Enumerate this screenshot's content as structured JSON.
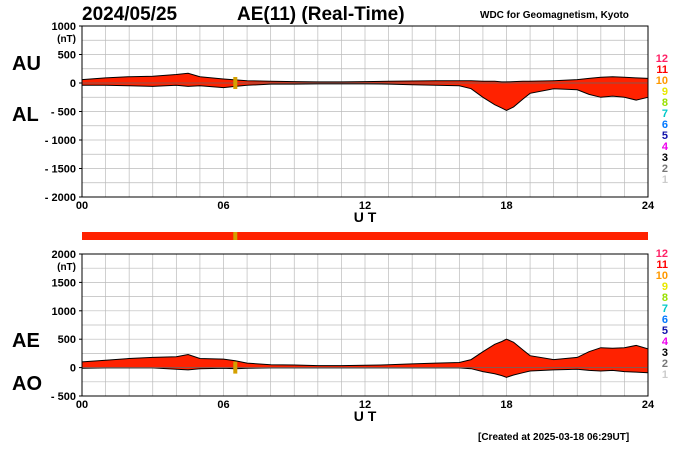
{
  "header": {
    "date": "2024/05/25",
    "title": "AE(11) (Real-Time)",
    "source": "WDC for Geomagnetism, Kyoto"
  },
  "footer": "[Created at 2025-03-18 06:29UT]",
  "colors": {
    "fill": "#ff2200",
    "outline": "#000000",
    "grid": "#bbbbbb",
    "marker": "#d4a000"
  },
  "legend_scale": {
    "labels": [
      "12",
      "11",
      "10",
      "9",
      "8",
      "7",
      "6",
      "5",
      "4",
      "3",
      "2",
      "1"
    ],
    "colors": [
      "#ff2266",
      "#ff0000",
      "#ff9900",
      "#e8e800",
      "#99e000",
      "#00c8c8",
      "#0077ff",
      "#1111aa",
      "#ee00ee",
      "#000000",
      "#777777",
      "#cccccc"
    ]
  },
  "chart_data": [
    {
      "type": "area",
      "panel": "AU/AL",
      "series_labels": [
        "AU",
        "AL"
      ],
      "unit_label": "(nT)",
      "xlabel": "U T",
      "x_ticks": [
        0,
        6,
        12,
        18,
        24
      ],
      "x_tick_labels": [
        "00",
        "06",
        "12",
        "18",
        "24"
      ],
      "xlim": [
        0,
        24
      ],
      "ylim": [
        -2000,
        1000
      ],
      "y_ticks": [
        1000,
        500,
        0,
        -500,
        -1000,
        -1500,
        -2000
      ],
      "y_tick_labels": [
        "1000",
        "500",
        "0",
        "- 500",
        "- 1000",
        "- 1500",
        "- 2000"
      ],
      "grid": true,
      "x": [
        0,
        1,
        2,
        3,
        4,
        4.5,
        5,
        6,
        6.5,
        7,
        8,
        9,
        10,
        11,
        12,
        13,
        14,
        15,
        16,
        16.5,
        17,
        17.5,
        17.8,
        18,
        18.3,
        18.7,
        19,
        20,
        21,
        21.5,
        22,
        22.5,
        23,
        23.5,
        24
      ],
      "upper": [
        60,
        90,
        110,
        120,
        150,
        170,
        110,
        70,
        55,
        40,
        30,
        25,
        20,
        20,
        25,
        30,
        35,
        40,
        40,
        40,
        30,
        30,
        20,
        20,
        25,
        30,
        30,
        40,
        60,
        80,
        100,
        110,
        100,
        90,
        80
      ],
      "lower": [
        -40,
        -40,
        -50,
        -60,
        -40,
        -60,
        -50,
        -80,
        -60,
        -40,
        -20,
        -20,
        -15,
        -15,
        -15,
        -20,
        -30,
        -40,
        -50,
        -100,
        -250,
        -380,
        -440,
        -480,
        -420,
        -280,
        -180,
        -100,
        -120,
        -200,
        -250,
        -230,
        -250,
        -300,
        -250
      ]
    },
    {
      "type": "area",
      "panel": "AE/AO",
      "series_labels": [
        "AE",
        "AO"
      ],
      "unit_label": "(nT)",
      "xlabel": "U T",
      "x_ticks": [
        0,
        6,
        12,
        18,
        24
      ],
      "x_tick_labels": [
        "00",
        "06",
        "12",
        "18",
        "24"
      ],
      "xlim": [
        0,
        24
      ],
      "ylim": [
        -500,
        2000
      ],
      "y_ticks": [
        2000,
        1500,
        1000,
        500,
        0,
        -500
      ],
      "y_tick_labels": [
        "2000",
        "1500",
        "1000",
        "500",
        "0",
        "- 500"
      ],
      "grid": true,
      "x": [
        0,
        1,
        2,
        3,
        4,
        4.5,
        5,
        6,
        6.5,
        7,
        8,
        9,
        10,
        11,
        12,
        13,
        14,
        15,
        16,
        16.5,
        17,
        17.5,
        17.8,
        18,
        18.3,
        18.7,
        19,
        20,
        21,
        21.5,
        22,
        22.5,
        23,
        23.5,
        24
      ],
      "upper": [
        100,
        130,
        160,
        180,
        190,
        230,
        160,
        150,
        120,
        80,
        50,
        45,
        35,
        35,
        40,
        50,
        65,
        80,
        90,
        140,
        280,
        410,
        460,
        500,
        445,
        310,
        210,
        140,
        180,
        280,
        350,
        340,
        350,
        390,
        330
      ],
      "lower": [
        -10,
        -5,
        -5,
        -5,
        -30,
        -40,
        -20,
        -10,
        -20,
        -10,
        -5,
        -5,
        -5,
        -5,
        -5,
        -5,
        -5,
        -5,
        -5,
        -20,
        -70,
        -110,
        -140,
        -170,
        -130,
        -90,
        -60,
        -40,
        -30,
        -50,
        -60,
        -50,
        -70,
        -80,
        -90
      ]
    }
  ],
  "status_bar": {
    "color": "#ff2200",
    "marker_hours": [
      6.5
    ]
  }
}
